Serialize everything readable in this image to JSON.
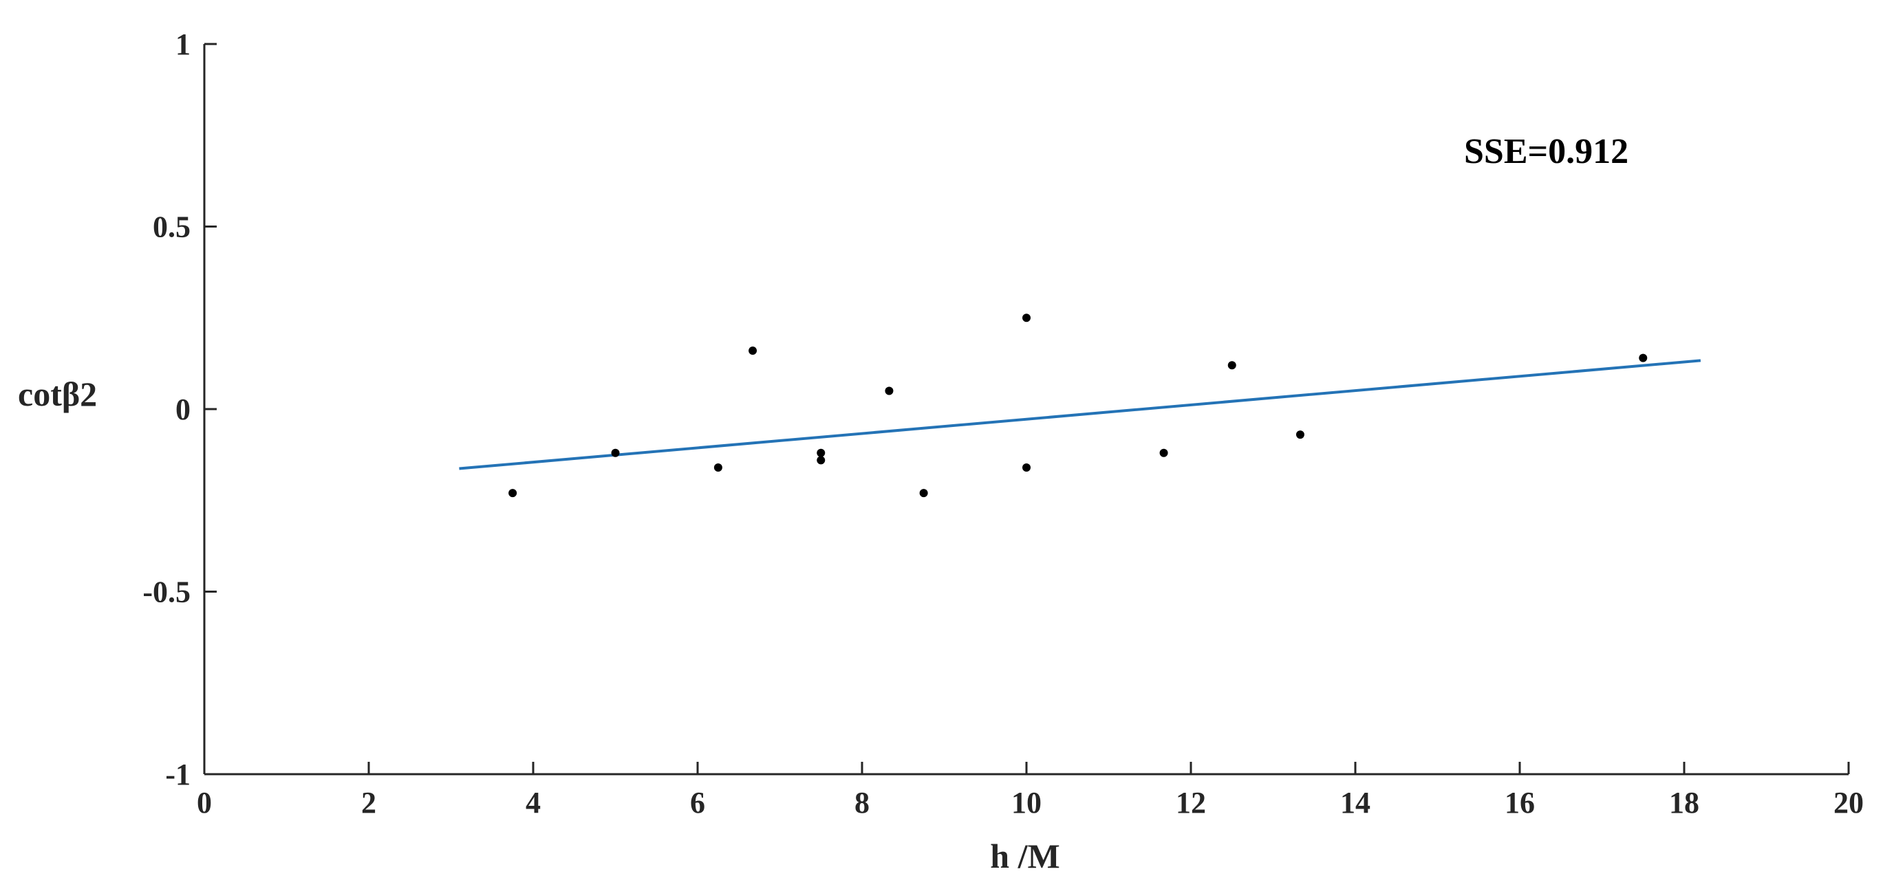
{
  "chart_data": {
    "type": "scatter",
    "title": "",
    "xlabel": "h /M",
    "ylabel": "cotβ2",
    "xlim": [
      0,
      20
    ],
    "ylim": [
      -1,
      1
    ],
    "xticks": [
      0,
      2,
      4,
      6,
      8,
      10,
      12,
      14,
      16,
      18,
      20
    ],
    "xtick_labels": [
      "0",
      "2",
      "4",
      "6",
      "8",
      "10",
      "12",
      "14",
      "16",
      "18",
      "20"
    ],
    "yticks": [
      1,
      0.5,
      0,
      -0.5,
      -1
    ],
    "ytick_labels": [
      "1",
      "0.5",
      "0",
      "-0.5",
      "-1"
    ],
    "grid": false,
    "legend": "none",
    "annotation": "SSE=0.912",
    "point_color": "#000000",
    "line_color": "#2473B6",
    "points": [
      {
        "x": 3.75,
        "y": -0.23
      },
      {
        "x": 5.0,
        "y": -0.12
      },
      {
        "x": 6.25,
        "y": -0.16
      },
      {
        "x": 6.67,
        "y": 0.16
      },
      {
        "x": 7.5,
        "y": -0.12
      },
      {
        "x": 7.5,
        "y": -0.14
      },
      {
        "x": 8.33,
        "y": 0.05
      },
      {
        "x": 8.75,
        "y": -0.23
      },
      {
        "x": 10.0,
        "y": 0.25
      },
      {
        "x": 10.0,
        "y": -0.16
      },
      {
        "x": 11.67,
        "y": -0.12
      },
      {
        "x": 12.5,
        "y": 0.12
      },
      {
        "x": 13.33,
        "y": -0.07
      },
      {
        "x": 17.5,
        "y": 0.14
      }
    ],
    "fit_line": {
      "x": [
        3.1,
        18.2
      ],
      "y": [
        -0.163,
        0.133
      ]
    }
  }
}
